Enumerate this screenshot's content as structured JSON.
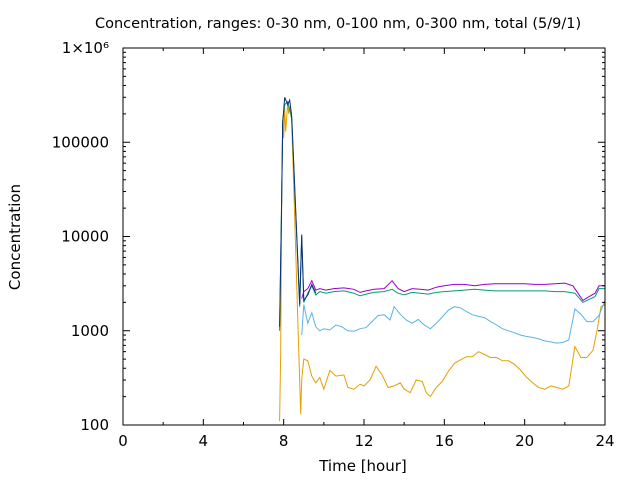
{
  "chart_data": {
    "type": "line",
    "title": "Concentration, ranges: 0-30 nm, 0-100 nm, 0-300 nm, total (5/9/1)",
    "xlabel": "Time [hour]",
    "ylabel": "Concentration",
    "xlim": [
      0,
      24
    ],
    "ylim": [
      100,
      1000000
    ],
    "yscale": "log",
    "grid": false,
    "x_ticks": [
      0,
      4,
      8,
      12,
      16,
      20,
      24
    ],
    "x_tick_labels": [
      "0",
      "4",
      "8",
      "12",
      "16",
      "20",
      "24"
    ],
    "y_ticks": [
      100,
      1000,
      10000,
      100000,
      1000000
    ],
    "y_tick_labels": [
      "100",
      "1000",
      "10000",
      "100000",
      "1×10⁶"
    ],
    "series": [
      {
        "color": "#e69f00",
        "points": [
          [
            7.8,
            110
          ],
          [
            7.85,
            600
          ],
          [
            7.9,
            28000
          ],
          [
            7.95,
            170000
          ],
          [
            8.0,
            110000
          ],
          [
            8.05,
            230000
          ],
          [
            8.1,
            130000
          ],
          [
            8.2,
            260000
          ],
          [
            8.25,
            200000
          ],
          [
            8.3,
            240000
          ],
          [
            8.4,
            170000
          ],
          [
            8.85,
            130
          ],
          [
            8.9,
            300
          ],
          [
            9.0,
            500
          ],
          [
            9.2,
            480
          ],
          [
            9.4,
            330
          ],
          [
            9.6,
            280
          ],
          [
            9.8,
            320
          ],
          [
            10.0,
            240
          ],
          [
            10.3,
            380
          ],
          [
            10.6,
            330
          ],
          [
            11.0,
            340
          ],
          [
            11.2,
            250
          ],
          [
            11.5,
            240
          ],
          [
            11.8,
            270
          ],
          [
            12.0,
            260
          ],
          [
            12.3,
            300
          ],
          [
            12.6,
            420
          ],
          [
            12.9,
            340
          ],
          [
            13.2,
            250
          ],
          [
            13.5,
            260
          ],
          [
            13.8,
            280
          ],
          [
            14.0,
            240
          ],
          [
            14.3,
            220
          ],
          [
            14.6,
            300
          ],
          [
            14.9,
            290
          ],
          [
            15.1,
            220
          ],
          [
            15.3,
            200
          ],
          [
            15.6,
            250
          ],
          [
            15.9,
            290
          ],
          [
            16.2,
            370
          ],
          [
            16.5,
            450
          ],
          [
            16.8,
            490
          ],
          [
            17.1,
            530
          ],
          [
            17.4,
            530
          ],
          [
            17.7,
            600
          ],
          [
            18.0,
            560
          ],
          [
            18.3,
            520
          ],
          [
            18.6,
            520
          ],
          [
            18.9,
            480
          ],
          [
            19.2,
            480
          ],
          [
            19.5,
            440
          ],
          [
            19.8,
            380
          ],
          [
            20.1,
            320
          ],
          [
            20.4,
            280
          ],
          [
            20.7,
            250
          ],
          [
            21.0,
            240
          ],
          [
            21.3,
            260
          ],
          [
            21.6,
            250
          ],
          [
            21.9,
            240
          ],
          [
            22.2,
            260
          ],
          [
            22.5,
            680
          ],
          [
            22.8,
            520
          ],
          [
            23.1,
            520
          ],
          [
            23.4,
            620
          ],
          [
            23.6,
            1000
          ],
          [
            23.8,
            1800
          ],
          [
            24.0,
            1900
          ]
        ]
      },
      {
        "color": "#56b4e9",
        "points": [
          [
            8.9,
            900
          ],
          [
            9.0,
            1900
          ],
          [
            9.2,
            1200
          ],
          [
            9.4,
            1550
          ],
          [
            9.6,
            1100
          ],
          [
            9.8,
            1000
          ],
          [
            10.0,
            1050
          ],
          [
            10.3,
            1020
          ],
          [
            10.6,
            1150
          ],
          [
            10.9,
            1100
          ],
          [
            11.2,
            1000
          ],
          [
            11.5,
            990
          ],
          [
            11.8,
            1050
          ],
          [
            12.1,
            1080
          ],
          [
            12.4,
            1250
          ],
          [
            12.7,
            1450
          ],
          [
            13.0,
            1480
          ],
          [
            13.3,
            1300
          ],
          [
            13.5,
            1800
          ],
          [
            13.8,
            1500
          ],
          [
            14.1,
            1300
          ],
          [
            14.4,
            1200
          ],
          [
            14.7,
            1320
          ],
          [
            15.0,
            1150
          ],
          [
            15.3,
            1050
          ],
          [
            15.6,
            1200
          ],
          [
            15.9,
            1400
          ],
          [
            16.2,
            1650
          ],
          [
            16.5,
            1800
          ],
          [
            16.8,
            1750
          ],
          [
            17.1,
            1600
          ],
          [
            17.4,
            1480
          ],
          [
            17.7,
            1420
          ],
          [
            18.0,
            1380
          ],
          [
            18.3,
            1250
          ],
          [
            18.6,
            1150
          ],
          [
            18.9,
            1050
          ],
          [
            19.2,
            1000
          ],
          [
            19.5,
            950
          ],
          [
            19.8,
            900
          ],
          [
            20.1,
            870
          ],
          [
            20.4,
            850
          ],
          [
            20.7,
            820
          ],
          [
            21.0,
            780
          ],
          [
            21.3,
            760
          ],
          [
            21.6,
            740
          ],
          [
            21.9,
            750
          ],
          [
            22.2,
            800
          ],
          [
            22.5,
            1700
          ],
          [
            22.8,
            1500
          ],
          [
            23.1,
            1250
          ],
          [
            23.4,
            1250
          ],
          [
            23.7,
            1450
          ],
          [
            24.0,
            2100
          ]
        ]
      },
      {
        "color": "#009e73",
        "points": [
          [
            7.8,
            1000
          ],
          [
            7.9,
            28000
          ],
          [
            7.95,
            170000
          ],
          [
            8.05,
            250000
          ],
          [
            8.2,
            270000
          ],
          [
            8.4,
            180000
          ],
          [
            8.8,
            1800
          ],
          [
            8.9,
            10000
          ],
          [
            9.0,
            2000
          ],
          [
            9.2,
            2500
          ],
          [
            9.4,
            3000
          ],
          [
            9.6,
            2400
          ],
          [
            9.8,
            2600
          ],
          [
            10.1,
            2500
          ],
          [
            10.5,
            2600
          ],
          [
            11.0,
            2650
          ],
          [
            11.5,
            2500
          ],
          [
            11.8,
            2350
          ],
          [
            12.1,
            2450
          ],
          [
            12.5,
            2550
          ],
          [
            13.0,
            2600
          ],
          [
            13.4,
            2750
          ],
          [
            13.7,
            2500
          ],
          [
            14.0,
            2400
          ],
          [
            14.4,
            2550
          ],
          [
            14.8,
            2500
          ],
          [
            15.2,
            2450
          ],
          [
            15.6,
            2550
          ],
          [
            16.0,
            2600
          ],
          [
            16.5,
            2650
          ],
          [
            17.0,
            2700
          ],
          [
            17.5,
            2750
          ],
          [
            18.0,
            2700
          ],
          [
            18.5,
            2650
          ],
          [
            19.0,
            2650
          ],
          [
            19.5,
            2650
          ],
          [
            20.0,
            2650
          ],
          [
            20.5,
            2650
          ],
          [
            21.0,
            2650
          ],
          [
            21.5,
            2600
          ],
          [
            22.0,
            2600
          ],
          [
            22.5,
            2500
          ],
          [
            22.9,
            2000
          ],
          [
            23.2,
            2150
          ],
          [
            23.5,
            2300
          ],
          [
            23.7,
            2800
          ],
          [
            24.0,
            2800
          ]
        ]
      },
      {
        "color": "#9400d3",
        "points": [
          [
            8.9,
            2200
          ],
          [
            9.0,
            2600
          ],
          [
            9.2,
            2800
          ],
          [
            9.4,
            3400
          ],
          [
            9.6,
            2700
          ],
          [
            9.8,
            2800
          ],
          [
            10.1,
            2700
          ],
          [
            10.5,
            2800
          ],
          [
            11.0,
            2850
          ],
          [
            11.5,
            2750
          ],
          [
            11.8,
            2550
          ],
          [
            12.1,
            2650
          ],
          [
            12.5,
            2750
          ],
          [
            13.0,
            2800
          ],
          [
            13.4,
            3400
          ],
          [
            13.7,
            2800
          ],
          [
            14.0,
            2600
          ],
          [
            14.4,
            2800
          ],
          [
            14.8,
            2750
          ],
          [
            15.2,
            2700
          ],
          [
            15.6,
            2900
          ],
          [
            16.0,
            3000
          ],
          [
            16.5,
            3100
          ],
          [
            17.0,
            3100
          ],
          [
            17.5,
            3000
          ],
          [
            18.0,
            3100
          ],
          [
            18.5,
            3150
          ],
          [
            19.0,
            3150
          ],
          [
            19.5,
            3150
          ],
          [
            20.0,
            3150
          ],
          [
            20.5,
            3100
          ],
          [
            21.0,
            3100
          ],
          [
            21.5,
            3150
          ],
          [
            22.0,
            3200
          ],
          [
            22.4,
            3000
          ],
          [
            22.9,
            2100
          ],
          [
            23.2,
            2300
          ],
          [
            23.5,
            2500
          ],
          [
            23.7,
            3000
          ],
          [
            24.0,
            3000
          ]
        ]
      },
      {
        "color": "#0c2e7a",
        "points": [
          [
            7.8,
            1100
          ],
          [
            7.9,
            25000
          ],
          [
            7.95,
            160000
          ],
          [
            8.05,
            300000
          ],
          [
            8.2,
            250000
          ],
          [
            8.3,
            280000
          ],
          [
            8.4,
            190000
          ],
          [
            8.8,
            1900
          ],
          [
            8.9,
            10500
          ],
          [
            9.0,
            2100
          ],
          [
            9.2,
            2400
          ],
          [
            9.4,
            3100
          ],
          [
            9.6,
            2500
          ]
        ]
      }
    ]
  }
}
